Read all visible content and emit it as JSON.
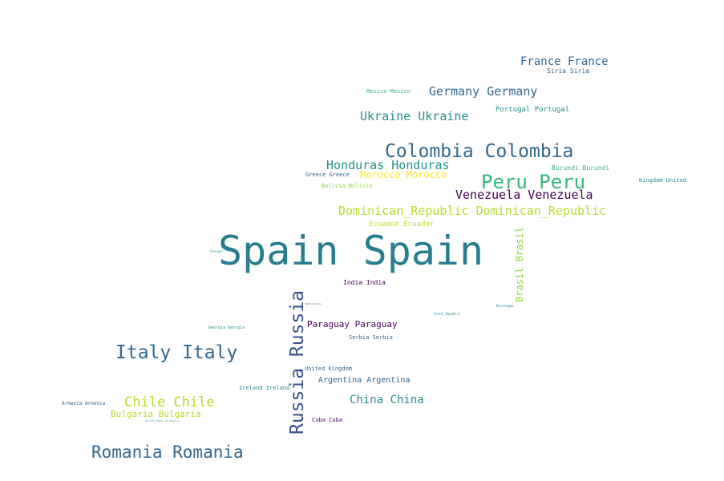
{
  "words": {
    "spain": "Spain Spain",
    "russia": "Russia Russia",
    "colombia": "Colombia Colombia",
    "peru": "Peru Peru",
    "italy": "Italy Italy",
    "romania": "Romania Romania",
    "germany": "Germany Germany",
    "france": "France France",
    "ukraine": "Ukraine Ukraine",
    "honduras": "Honduras Honduras",
    "venezuela": "Venezuela Venezuela",
    "dominican": "Dominican_Republic Dominican_Republic",
    "chile": "Chile Chile",
    "china": "China China",
    "brasil": "Brasil Brasil",
    "morocco": "Morocco Morocco",
    "paraguay": "Paraguay Paraguay",
    "bulgaria": "Bulgaria Bulgaria",
    "argentina": "Argentina Argentina",
    "ecuador": "Ecuador Ecuador",
    "india": "India India",
    "portugal": "Portugal Portugal",
    "siria": "Siria Siria",
    "mexico": "Mexico Mexico",
    "burundi": "Burundi Burundi",
    "kingdom_united": "Kingdom United",
    "greece": "Greece Greece",
    "bolivia": "Bolivia Bolivia",
    "united_kingdom": "United Kingdom",
    "ireland": "Ireland Ireland",
    "serbia": "Serbia Serbia",
    "armenia": "Armenia Armenia",
    "georgia": "Georgia Georgia",
    "cuba": "Cuba Cuba",
    "nicaragua": "Nicaragua",
    "czech": "Czech_Republic",
    "netherlands": "Netherlands",
    "senegal": "Senegal",
    "usa": "United_States_of_America"
  },
  "colors": {
    "dark_purple": "#440154",
    "indigo": "#3b528b",
    "slate_blue": "#31688e",
    "teal": "#21918c",
    "deep_teal": "#287d8e",
    "green": "#35b779",
    "lime": "#90d743",
    "yellow_green": "#b5de2b",
    "yellow": "#fde725"
  }
}
